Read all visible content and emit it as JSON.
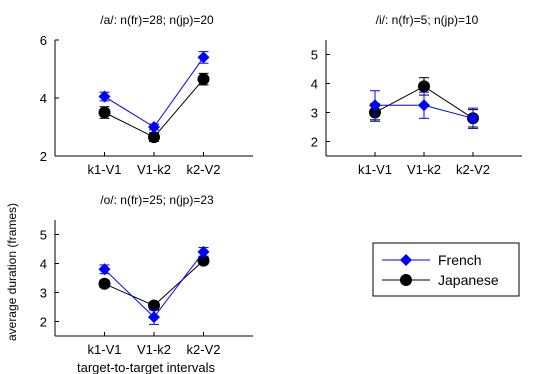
{
  "figure": {
    "ylabel": "average duration (frames)",
    "xlabel": "target-to-target intervals"
  },
  "legend": {
    "placement": "bottom-right panel",
    "items": [
      {
        "label": "French",
        "color": "#0000ff",
        "marker": "diamond"
      },
      {
        "label": "Japanese",
        "color": "#000000",
        "marker": "circle"
      }
    ]
  },
  "chart_data": [
    {
      "type": "line",
      "title": "/a/: n(fr)=28; n(jp)=20",
      "categories": [
        "k1-V1",
        "V1-k2",
        "k2-V2"
      ],
      "ylim": [
        2,
        6
      ],
      "yticks": [
        2,
        4,
        6
      ],
      "grid": false,
      "series": [
        {
          "name": "French",
          "color": "#0000ff",
          "marker": "diamond",
          "values": [
            4.05,
            3.0,
            5.4
          ],
          "errors": [
            0.15,
            0.1,
            0.2
          ]
        },
        {
          "name": "Japanese",
          "color": "#000000",
          "marker": "circle",
          "values": [
            3.5,
            2.65,
            4.65
          ],
          "errors": [
            0.2,
            0.15,
            0.2
          ]
        }
      ]
    },
    {
      "type": "line",
      "title": "/i/: n(fr)=5; n(jp)=10",
      "categories": [
        "k1-V1",
        "V1-k2",
        "k2-V2"
      ],
      "ylim": [
        1.5,
        5.5
      ],
      "yticks": [
        2,
        3,
        4,
        5
      ],
      "grid": false,
      "series": [
        {
          "name": "French",
          "color": "#0000ff",
          "marker": "diamond",
          "values": [
            3.25,
            3.25,
            2.8
          ],
          "errors": [
            0.5,
            0.45,
            0.35
          ]
        },
        {
          "name": "Japanese",
          "color": "#000000",
          "marker": "circle",
          "values": [
            3.0,
            3.9,
            2.8
          ],
          "errors": [
            0.3,
            0.3,
            0.3
          ]
        }
      ]
    },
    {
      "type": "line",
      "title": "/o/: n(fr)=25; n(jp)=23",
      "categories": [
        "k1-V1",
        "V1-k2",
        "k2-V2"
      ],
      "ylim": [
        1.5,
        5.5
      ],
      "yticks": [
        2,
        3,
        4,
        5
      ],
      "grid": false,
      "series": [
        {
          "name": "French",
          "color": "#0000ff",
          "marker": "diamond",
          "values": [
            3.8,
            2.15,
            4.4
          ],
          "errors": [
            0.15,
            0.25,
            0.15
          ]
        },
        {
          "name": "Japanese",
          "color": "#000000",
          "marker": "circle",
          "values": [
            3.3,
            2.55,
            4.1
          ],
          "errors": [
            0.12,
            0.12,
            0.12
          ]
        }
      ]
    }
  ]
}
